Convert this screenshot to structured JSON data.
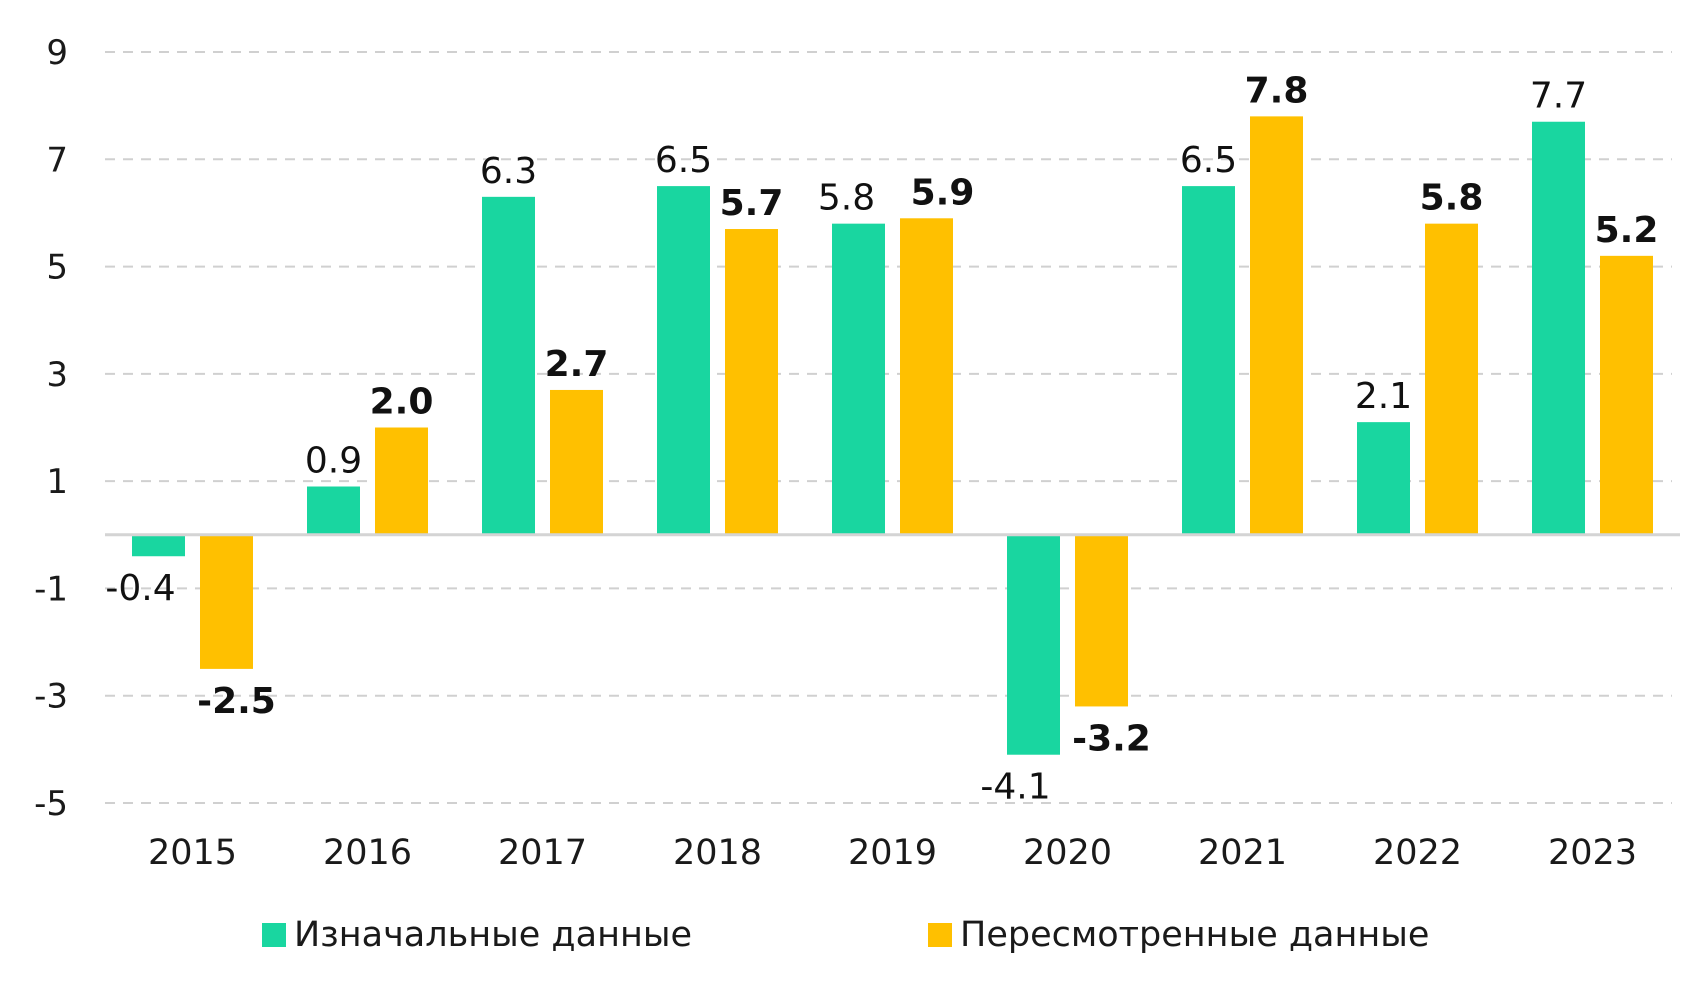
{
  "chart_data": {
    "type": "bar",
    "categories": [
      "2015",
      "2016",
      "2017",
      "2018",
      "2019",
      "2020",
      "2021",
      "2022",
      "2023"
    ],
    "series": [
      {
        "name": "Изначальные данные",
        "color": "#19d6a0",
        "values": [
          -0.4,
          0.9,
          6.3,
          6.5,
          5.8,
          -4.1,
          6.5,
          2.1,
          7.7
        ],
        "labels": [
          "-0.4",
          "0.9",
          "6.3",
          "6.5",
          "5.8",
          "-4.1",
          "6.5",
          "2.1",
          "7.7"
        ]
      },
      {
        "name": "Пересмотренные данные",
        "color": "#ffc000",
        "values": [
          -2.5,
          2.0,
          2.7,
          5.7,
          5.9,
          -3.2,
          7.8,
          5.8,
          5.2
        ],
        "labels": [
          "-2.5",
          "2.0",
          "2.7",
          "5.7",
          "5.9",
          "-3.2",
          "7.8",
          "5.8",
          "5.2"
        ]
      }
    ],
    "y_ticks": [
      "9",
      "7",
      "5",
      "3",
      "1",
      "-1",
      "-3",
      "-5"
    ],
    "ylim": [
      -5,
      9
    ],
    "grid": true,
    "legend_position": "bottom",
    "title": "",
    "xlabel": "",
    "ylabel": ""
  }
}
